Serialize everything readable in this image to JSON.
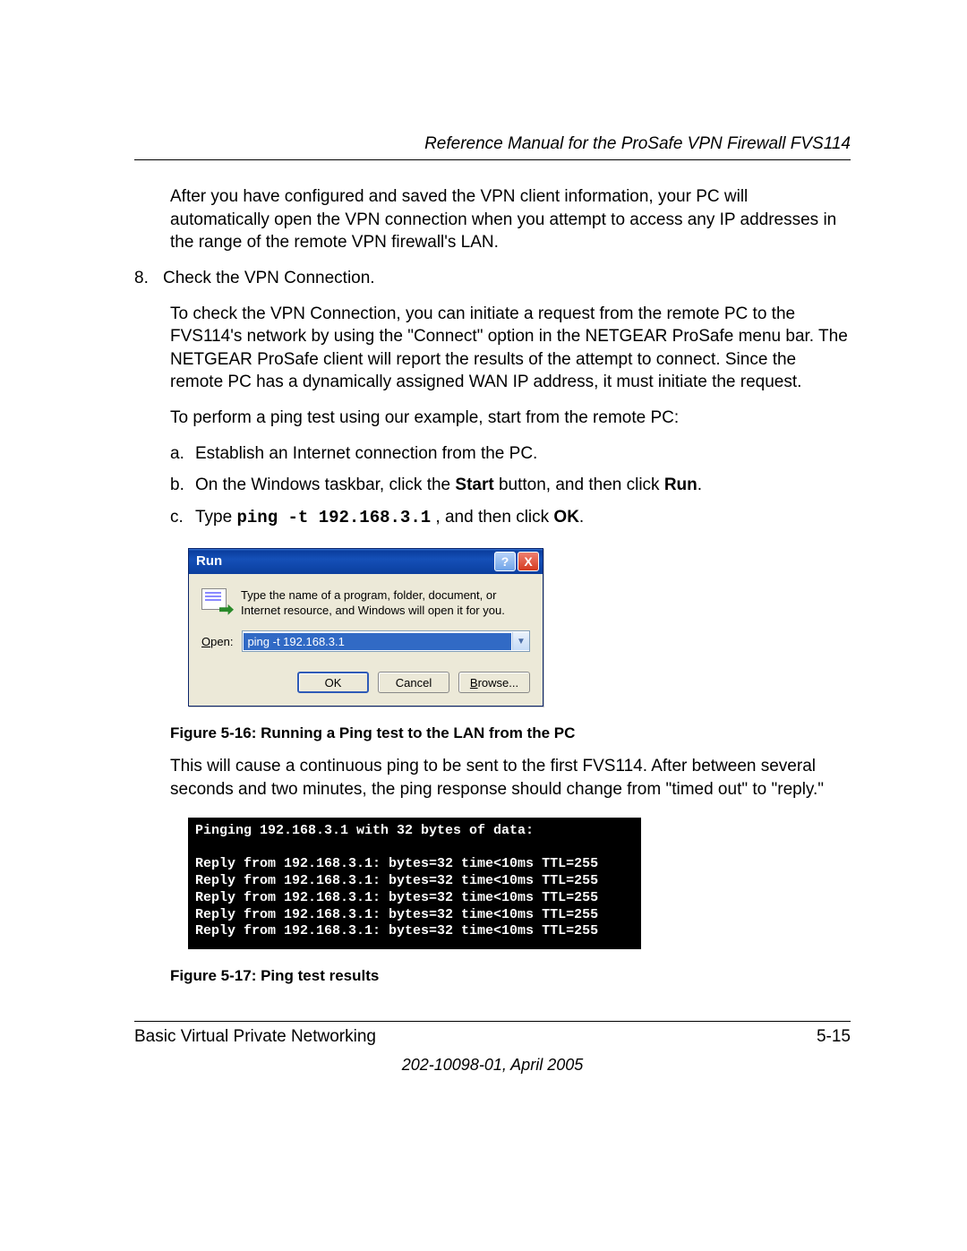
{
  "header": {
    "title": "Reference Manual for the ProSafe VPN Firewall FVS114"
  },
  "body": {
    "intro": "After you have configured and saved the VPN client information, your PC will automatically open the VPN connection when you attempt to access any IP addresses in the range of the remote VPN firewall's LAN.",
    "step8_num": "8.",
    "step8_text": "Check the VPN Connection.",
    "step8_para": "To check the VPN Connection, you can initiate a request from the remote PC to the FVS114's network by using the \"Connect\" option in the NETGEAR ProSafe menu bar. The NETGEAR ProSafe client will report the results of the attempt to connect. Since the remote PC has a dynamically assigned WAN IP address, it must initiate the request.",
    "ping_intro": "To perform a ping test using our example, start from the remote PC:",
    "sub_a_num": "a.",
    "sub_a_text": "Establish an Internet connection from the PC.",
    "sub_b_num": "b.",
    "sub_b_pre": "On the Windows taskbar, click the ",
    "sub_b_start": "Start",
    "sub_b_mid": " button, and then click ",
    "sub_b_run": "Run",
    "sub_b_post": ".",
    "sub_c_num": "c.",
    "sub_c_pre": "Type ",
    "sub_c_cmd": "ping -t 192.168.3.1",
    "sub_c_mid": " , and then click ",
    "sub_c_ok": "OK",
    "sub_c_post": ".",
    "fig16": "Figure 5-16:  Running a Ping test to the LAN from the PC",
    "after_fig16": "This will cause a continuous ping to be sent to the first FVS114. After between several seconds and two minutes, the ping response should change from \"timed out\" to \"reply.\"",
    "fig17": "Figure 5-17:  Ping test results"
  },
  "run_dialog": {
    "title": "Run",
    "help_icon": "?",
    "close_icon": "X",
    "description": "Type the name of a program, folder, document, or Internet resource, and Windows will open it for you.",
    "open_label_u": "O",
    "open_label_rest": "pen:",
    "input_value": "ping -t 192.168.3.1",
    "btn_ok": "OK",
    "btn_cancel": "Cancel",
    "btn_browse_u": "B",
    "btn_browse_rest": "rowse...",
    "colors": {
      "titlebar_bg": "#0a3e9e",
      "body_bg": "#ece9d8",
      "selection_bg": "#316ac5",
      "border": "#7f9db9"
    }
  },
  "terminal": {
    "line1": "Pinging 192.168.3.1 with 32 bytes of data:",
    "blank": "",
    "reply": "Reply from 192.168.3.1: bytes=32 time<10ms TTL=255",
    "colors": {
      "bg": "#000000",
      "fg": "#ffffff"
    }
  },
  "footer": {
    "left": "Basic Virtual Private Networking",
    "right": "5-15",
    "meta": "202-10098-01, April 2005"
  }
}
